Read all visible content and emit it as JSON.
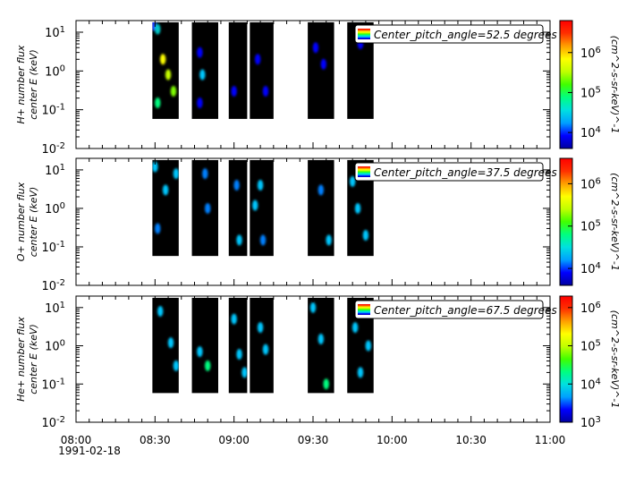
{
  "chart_data": {
    "type": "heatmap",
    "x_axis": {
      "range": [
        "08:00",
        "11:00"
      ],
      "tick_labels": [
        "08:00",
        "08:30",
        "09:00",
        "09:30",
        "10:00",
        "10:30",
        "11:00"
      ],
      "date_label": "1991-02-18"
    },
    "data_blocks": [
      {
        "start": "08:29",
        "end": "08:39"
      },
      {
        "start": "08:44",
        "end": "08:54"
      },
      {
        "start": "08:58",
        "end": "09:05"
      },
      {
        "start": "09:06",
        "end": "09:15"
      },
      {
        "start": "09:28",
        "end": "09:38"
      },
      {
        "start": "09:43",
        "end": "09:53"
      }
    ],
    "panels": [
      {
        "ylabel_line1": "H+ number flux",
        "ylabel_line2": "center E (keV)",
        "legend": "Center_pitch_angle=52.5 degrees",
        "cbar_label": "(cm^2-s-sr-keV)^-1",
        "cbar_ticks": [
          {
            "base": "10",
            "exp": "4",
            "log": 4
          },
          {
            "base": "10",
            "exp": "5",
            "log": 5
          },
          {
            "base": "10",
            "exp": "6",
            "log": 6
          }
        ],
        "cbar_range_log": [
          3.6,
          6.8
        ],
        "y_ticks": [
          {
            "base": "10",
            "exp": "1",
            "log": 1
          },
          {
            "base": "10",
            "exp": "0",
            "log": 0
          },
          {
            "base": "10",
            "exp": "-1",
            "log": -1
          },
          {
            "base": "10",
            "exp": "-2",
            "log": -2
          }
        ],
        "y_range_log": [
          -2,
          1.3
        ]
      },
      {
        "ylabel_line1": "O+ number flux",
        "ylabel_line2": "center E (keV)",
        "legend": "Center_pitch_angle=37.5 degrees",
        "cbar_label": "(cm^2-s-sr-keV)^-1",
        "cbar_ticks": [
          {
            "base": "10",
            "exp": "4",
            "log": 4
          },
          {
            "base": "10",
            "exp": "5",
            "log": 5
          },
          {
            "base": "10",
            "exp": "6",
            "log": 6
          }
        ],
        "cbar_range_log": [
          3.6,
          6.6
        ],
        "y_ticks": [
          {
            "base": "10",
            "exp": "1",
            "log": 1
          },
          {
            "base": "10",
            "exp": "0",
            "log": 0
          },
          {
            "base": "10",
            "exp": "-1",
            "log": -1
          },
          {
            "base": "10",
            "exp": "-2",
            "log": -2
          }
        ],
        "y_range_log": [
          -2,
          1.3
        ]
      },
      {
        "ylabel_line1": "He+ number flux",
        "ylabel_line2": "center E (keV)",
        "legend": "Center_pitch_angle=67.5 degrees",
        "cbar_label": "(cm^2-s-sr-keV)^-1",
        "cbar_ticks": [
          {
            "base": "10",
            "exp": "3",
            "log": 3
          },
          {
            "base": "10",
            "exp": "4",
            "log": 4
          },
          {
            "base": "10",
            "exp": "5",
            "log": 5
          },
          {
            "base": "10",
            "exp": "6",
            "log": 6
          }
        ],
        "cbar_range_log": [
          3,
          6.3
        ],
        "y_ticks": [
          {
            "base": "10",
            "exp": "1",
            "log": 1
          },
          {
            "base": "10",
            "exp": "0",
            "log": 0
          },
          {
            "base": "10",
            "exp": "-1",
            "log": -1
          },
          {
            "base": "10",
            "exp": "-2",
            "log": -2
          }
        ],
        "y_range_log": [
          -2,
          1.3
        ]
      }
    ],
    "blobs": [
      [
        {
          "t": "08:29.5",
          "e": 15,
          "c": "#1a3cff"
        },
        {
          "t": "08:31",
          "e": 12,
          "c": "#00c8c8"
        },
        {
          "t": "08:33",
          "e": 2,
          "c": "#ffff00"
        },
        {
          "t": "08:35",
          "e": 0.8,
          "c": "#c8ff00"
        },
        {
          "t": "08:31",
          "e": 0.15,
          "c": "#00ff80"
        },
        {
          "t": "08:37",
          "e": 0.3,
          "c": "#80ff00"
        },
        {
          "t": "08:48",
          "e": 0.8,
          "c": "#00c8ff"
        },
        {
          "t": "08:47",
          "e": 3,
          "c": "#0000ff"
        },
        {
          "t": "08:47",
          "e": 0.15,
          "c": "#0000ff"
        },
        {
          "t": "09:00",
          "e": 0.3,
          "c": "#0000ff"
        },
        {
          "t": "09:09",
          "e": 2,
          "c": "#0000ff"
        },
        {
          "t": "09:12",
          "e": 0.3,
          "c": "#0000ff"
        },
        {
          "t": "09:34",
          "e": 1.5,
          "c": "#0000ff"
        },
        {
          "t": "09:31",
          "e": 4,
          "c": "#0000ff"
        },
        {
          "t": "09:48",
          "e": 5,
          "c": "#0000ff"
        }
      ],
      [
        {
          "t": "08:30",
          "e": 12,
          "c": "#00c8ff"
        },
        {
          "t": "08:34",
          "e": 3,
          "c": "#00c8ff"
        },
        {
          "t": "08:38",
          "e": 8,
          "c": "#00c8ff"
        },
        {
          "t": "08:31",
          "e": 0.3,
          "c": "#0080ff"
        },
        {
          "t": "08:49",
          "e": 8,
          "c": "#0080ff"
        },
        {
          "t": "08:50",
          "e": 1,
          "c": "#0080ff"
        },
        {
          "t": "09:01",
          "e": 4,
          "c": "#0080ff"
        },
        {
          "t": "09:02",
          "e": 0.15,
          "c": "#00c8ff"
        },
        {
          "t": "09:08",
          "e": 1.2,
          "c": "#00c8ff"
        },
        {
          "t": "09:10",
          "e": 4,
          "c": "#00c8ff"
        },
        {
          "t": "09:11",
          "e": 0.15,
          "c": "#0080ff"
        },
        {
          "t": "09:33",
          "e": 3,
          "c": "#0080ff"
        },
        {
          "t": "09:36",
          "e": 0.15,
          "c": "#00c8ff"
        },
        {
          "t": "09:45",
          "e": 5,
          "c": "#00c8ff"
        },
        {
          "t": "09:47",
          "e": 1,
          "c": "#00c8ff"
        },
        {
          "t": "09:50",
          "e": 0.2,
          "c": "#00c8ff"
        }
      ],
      [
        {
          "t": "08:32",
          "e": 8,
          "c": "#00c8ff"
        },
        {
          "t": "08:36",
          "e": 1.2,
          "c": "#00c8ff"
        },
        {
          "t": "08:38",
          "e": 0.3,
          "c": "#00c8ff"
        },
        {
          "t": "08:47",
          "e": 0.7,
          "c": "#00c8ff"
        },
        {
          "t": "08:50",
          "e": 0.3,
          "c": "#00ff80"
        },
        {
          "t": "09:00",
          "e": 5,
          "c": "#00c8ff"
        },
        {
          "t": "09:02",
          "e": 0.6,
          "c": "#00c8ff"
        },
        {
          "t": "09:04",
          "e": 0.2,
          "c": "#00c8ff"
        },
        {
          "t": "09:10",
          "e": 3,
          "c": "#00c8ff"
        },
        {
          "t": "09:12",
          "e": 0.8,
          "c": "#00c8ff"
        },
        {
          "t": "09:30",
          "e": 10,
          "c": "#00c8ff"
        },
        {
          "t": "09:33",
          "e": 1.5,
          "c": "#00c8ff"
        },
        {
          "t": "09:35",
          "e": 0.1,
          "c": "#00ff80"
        },
        {
          "t": "09:46",
          "e": 3,
          "c": "#00c8ff"
        },
        {
          "t": "09:48",
          "e": 0.2,
          "c": "#00c8ff"
        },
        {
          "t": "09:51",
          "e": 1,
          "c": "#00c8ff"
        }
      ]
    ]
  }
}
